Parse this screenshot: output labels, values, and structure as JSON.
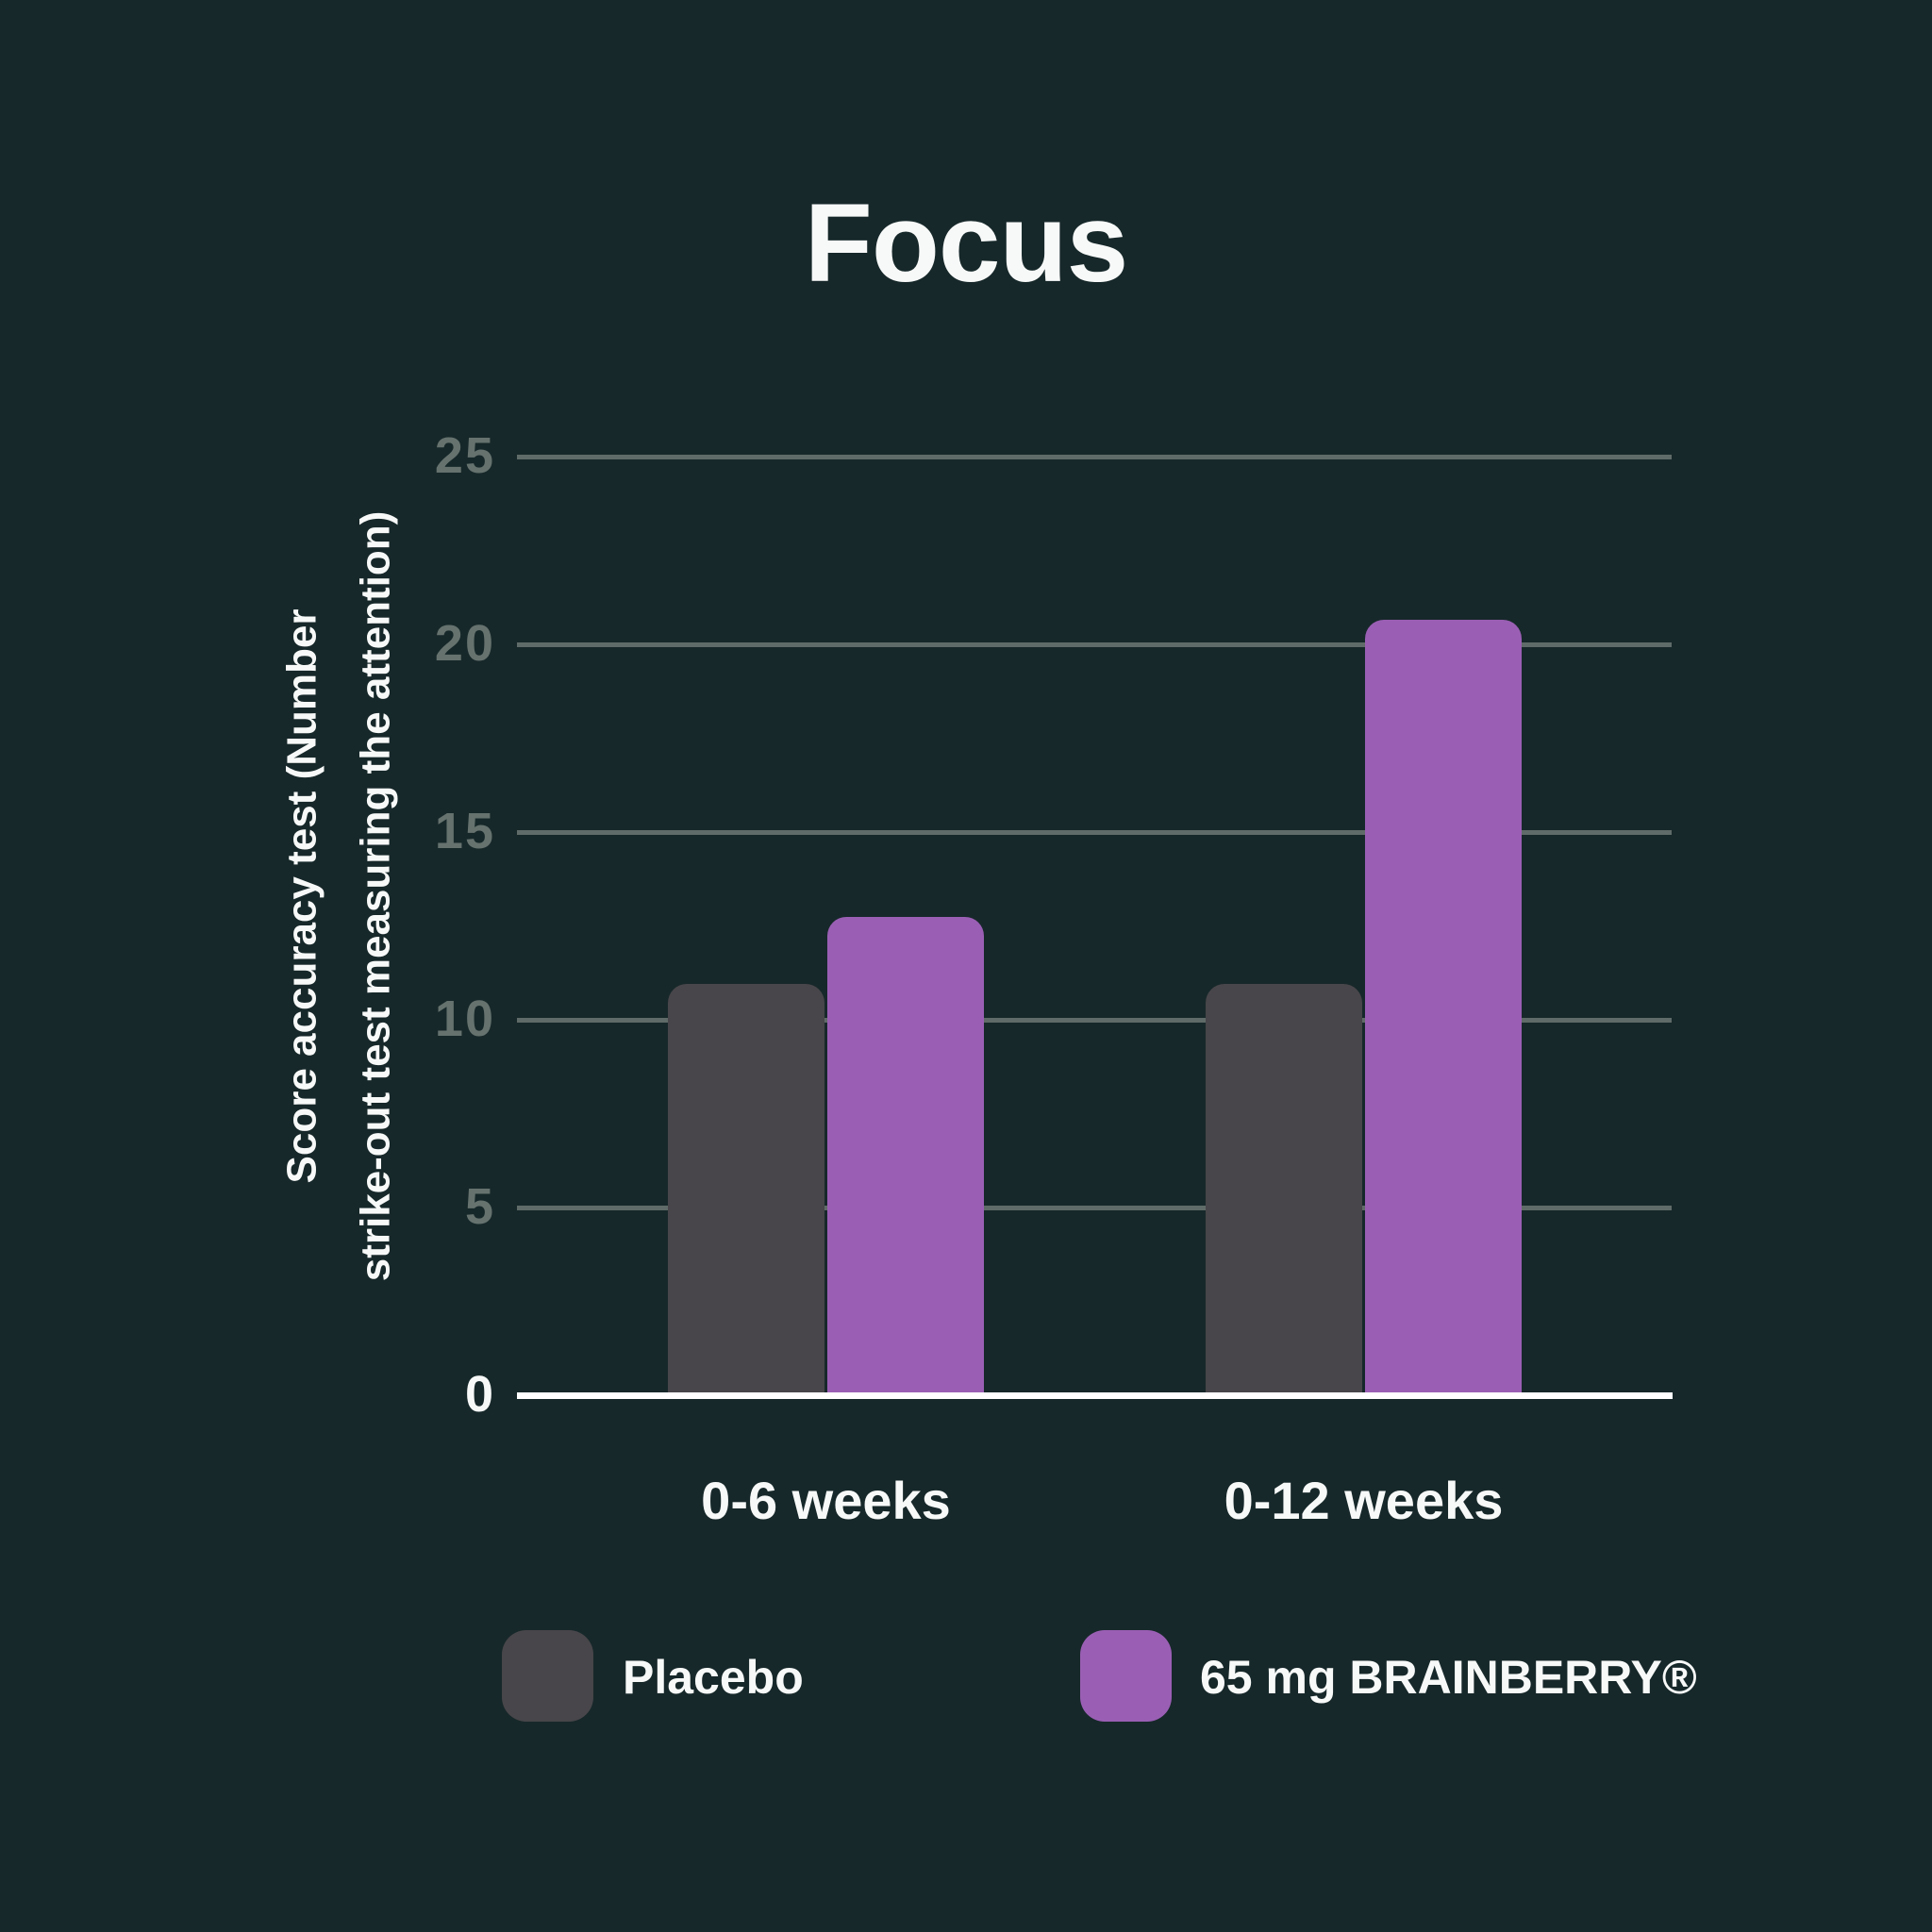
{
  "chart_data": {
    "type": "bar",
    "title": "Focus",
    "categories": [
      "0-6 weeks",
      "0-12 weeks"
    ],
    "series": [
      {
        "name": "Placebo",
        "color": "#48464a",
        "values": [
          10.9,
          10.9
        ]
      },
      {
        "name": "65 mg BRAINBERRY®",
        "color": "#9a5fb4",
        "values": [
          12.7,
          20.6
        ]
      }
    ],
    "ylabel_lines": [
      "Score accuracy test (Number",
      "strike-out test measuring the attention)"
    ],
    "xlabel": "",
    "yticks": [
      0,
      5,
      10,
      15,
      20,
      25
    ],
    "ylim": [
      0,
      25
    ],
    "grid": true,
    "legend_position": "bottom",
    "colors": {
      "background": "#17282a",
      "gridline": "#5f6b68",
      "tick_label": "#65726e",
      "text": "#f7f9f8",
      "axis_line": "#ffffff"
    }
  }
}
